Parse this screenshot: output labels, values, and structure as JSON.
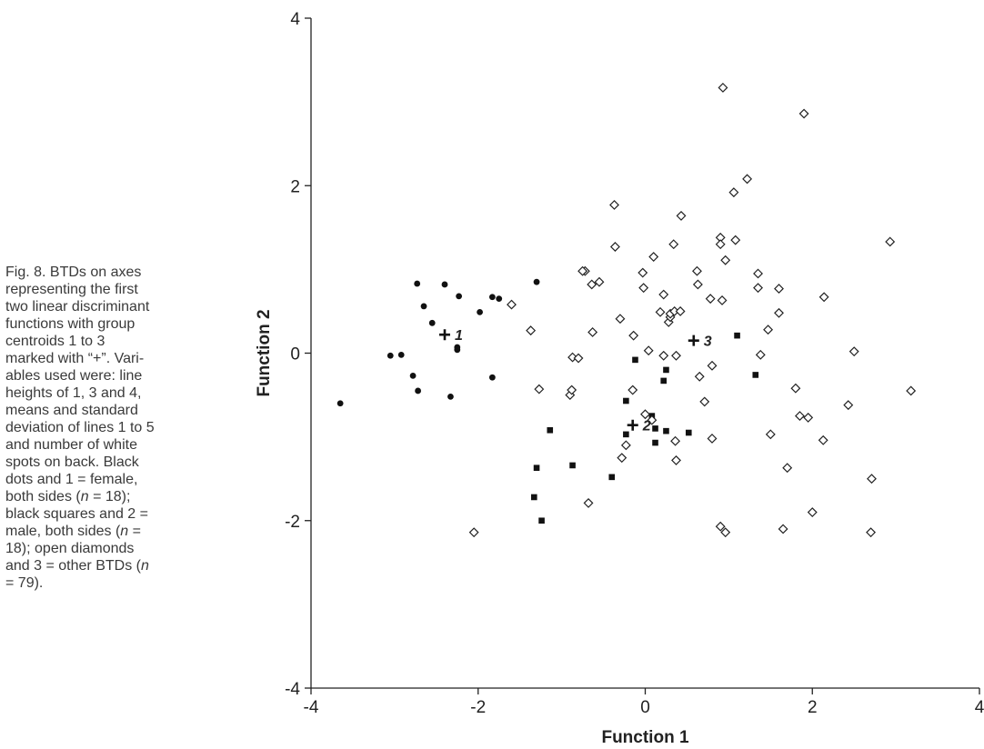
{
  "caption": {
    "l1": "Fig. 8. BTDs on axes",
    "l2": "representing the first",
    "l3": "two linear discriminant",
    "l4": "functions with group",
    "l5": "centroids 1 to 3",
    "l6": "marked with “+”. Vari-",
    "l7": "ables used were: line",
    "l8": "heights of 1, 3 and 4,",
    "l9": "means and standard",
    "l10": "deviation of lines 1 to 5",
    "l11": "and number of white",
    "l12": "spots on back. Black",
    "l13": "dots and 1 = female,",
    "l14a": "both sides (",
    "l14n": "n",
    "l14b": " = 18);",
    "l15": "black squares and 2 =",
    "l16a": "male, both sides (",
    "l16n": "n",
    "l16b": " =",
    "l17": "18); open diamonds",
    "l18a": "and 3 = other BTDs (",
    "l18n": "n",
    "l19": "= 79)."
  },
  "chart_data": {
    "type": "scatter",
    "xlabel": "Function 1",
    "ylabel": "Function 2",
    "xlim": [
      -4,
      4
    ],
    "ylim": [
      -4,
      4
    ],
    "xticks": [
      "-4",
      "-2",
      "0",
      "2",
      "4"
    ],
    "yticks": [
      "-4",
      "-2",
      "0",
      "2",
      "4"
    ],
    "grid": false,
    "series": [
      {
        "marker": "filled-circle",
        "points": [
          [
            -3.65,
            -0.6
          ],
          [
            -3.05,
            -0.03
          ],
          [
            -2.92,
            -0.02
          ],
          [
            -2.78,
            -0.27
          ],
          [
            -2.73,
            0.83
          ],
          [
            -2.72,
            -0.45
          ],
          [
            -2.65,
            0.56
          ],
          [
            -2.55,
            0.36
          ],
          [
            -2.4,
            0.82
          ],
          [
            -2.33,
            -0.52
          ],
          [
            -2.25,
            0.07
          ],
          [
            -2.25,
            0.04
          ],
          [
            -2.23,
            0.68
          ],
          [
            -1.98,
            0.49
          ],
          [
            -1.83,
            0.67
          ],
          [
            -1.83,
            -0.29
          ],
          [
            -1.75,
            0.65
          ],
          [
            -1.3,
            0.85
          ]
        ]
      },
      {
        "marker": "filled-square",
        "points": [
          [
            -1.3,
            -1.37
          ],
          [
            -1.33,
            -1.72
          ],
          [
            -1.24,
            -2.0
          ],
          [
            -1.14,
            -0.92
          ],
          [
            -0.87,
            -1.34
          ],
          [
            -0.4,
            -1.48
          ],
          [
            -0.23,
            -0.57
          ],
          [
            -0.23,
            -0.97
          ],
          [
            -0.12,
            -0.08
          ],
          [
            0.08,
            -0.75
          ],
          [
            0.12,
            -0.9
          ],
          [
            0.12,
            -1.07
          ],
          [
            0.22,
            -0.33
          ],
          [
            0.25,
            -0.2
          ],
          [
            0.25,
            -0.93
          ],
          [
            0.52,
            -0.95
          ],
          [
            1.1,
            0.21
          ],
          [
            1.32,
            -0.26
          ]
        ]
      },
      {
        "marker": "open-diamond",
        "points": [
          [
            -2.05,
            -2.14
          ],
          [
            -1.6,
            0.58
          ],
          [
            -1.37,
            0.27
          ],
          [
            -1.27,
            -0.43
          ],
          [
            -0.9,
            -0.5
          ],
          [
            -0.88,
            -0.44
          ],
          [
            -0.87,
            -0.05
          ],
          [
            -0.8,
            -0.06
          ],
          [
            -0.68,
            -1.79
          ],
          [
            -0.63,
            0.25
          ],
          [
            -0.72,
            0.98
          ],
          [
            -0.75,
            0.98
          ],
          [
            -0.64,
            0.82
          ],
          [
            -0.55,
            0.85
          ],
          [
            -0.37,
            1.77
          ],
          [
            -0.36,
            1.27
          ],
          [
            -0.3,
            0.41
          ],
          [
            -0.28,
            -1.25
          ],
          [
            -0.23,
            -1.1
          ],
          [
            -0.15,
            -0.44
          ],
          [
            -0.14,
            0.21
          ],
          [
            -0.03,
            0.96
          ],
          [
            -0.02,
            0.78
          ],
          [
            0.0,
            -0.73
          ],
          [
            0.04,
            0.03
          ],
          [
            0.08,
            -0.8
          ],
          [
            0.1,
            1.15
          ],
          [
            0.18,
            0.49
          ],
          [
            0.22,
            -0.03
          ],
          [
            0.22,
            0.7
          ],
          [
            0.28,
            0.37
          ],
          [
            0.3,
            0.43
          ],
          [
            0.3,
            0.47
          ],
          [
            0.35,
            0.5
          ],
          [
            0.34,
            1.3
          ],
          [
            0.36,
            -1.05
          ],
          [
            0.37,
            -1.28
          ],
          [
            0.37,
            -0.03
          ],
          [
            0.42,
            0.5
          ],
          [
            0.43,
            1.64
          ],
          [
            0.62,
            0.98
          ],
          [
            0.63,
            0.82
          ],
          [
            0.65,
            -0.28
          ],
          [
            0.71,
            -0.58
          ],
          [
            0.78,
            0.65
          ],
          [
            0.8,
            -0.15
          ],
          [
            0.8,
            -1.02
          ],
          [
            0.9,
            1.38
          ],
          [
            0.9,
            1.3
          ],
          [
            0.9,
            -2.07
          ],
          [
            0.92,
            0.63
          ],
          [
            0.93,
            3.17
          ],
          [
            0.96,
            1.11
          ],
          [
            0.96,
            -2.14
          ],
          [
            1.06,
            1.92
          ],
          [
            1.08,
            1.35
          ],
          [
            1.22,
            2.08
          ],
          [
            1.35,
            0.95
          ],
          [
            1.35,
            0.78
          ],
          [
            1.38,
            -0.02
          ],
          [
            1.47,
            0.28
          ],
          [
            1.5,
            -0.97
          ],
          [
            1.6,
            0.77
          ],
          [
            1.6,
            0.48
          ],
          [
            1.65,
            -2.1
          ],
          [
            1.7,
            -1.37
          ],
          [
            1.8,
            -0.42
          ],
          [
            1.85,
            -0.75
          ],
          [
            1.9,
            2.86
          ],
          [
            1.95,
            -0.77
          ],
          [
            2.0,
            -1.9
          ],
          [
            2.14,
            0.67
          ],
          [
            2.13,
            -1.04
          ],
          [
            2.43,
            -0.62
          ],
          [
            2.5,
            0.02
          ],
          [
            2.7,
            -2.14
          ],
          [
            2.71,
            -1.5
          ],
          [
            2.93,
            1.33
          ],
          [
            3.18,
            -0.45
          ]
        ]
      }
    ],
    "centroids": [
      {
        "label": "1",
        "x": -2.4,
        "y": 0.22
      },
      {
        "label": "2",
        "x": -0.15,
        "y": -0.86
      },
      {
        "label": "3",
        "x": 0.58,
        "y": 0.15
      }
    ]
  }
}
